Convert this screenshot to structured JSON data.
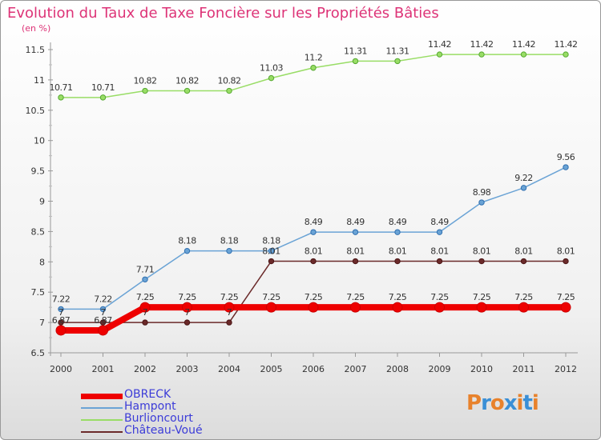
{
  "title": "Evolution du Taux de Taxe Foncière sur les Propriétés Bâties",
  "subtitle": "(en %)",
  "logo": {
    "letters": [
      "P",
      "r",
      "o",
      "x",
      "i",
      "t",
      "i"
    ],
    "colors": [
      "#e8822c",
      "#3a8fd6",
      "#e8822c",
      "#3a8fd6",
      "#e8822c",
      "#3a8fd6",
      "#e8822c"
    ],
    "text": "Proxiti"
  },
  "chart_data": {
    "type": "line",
    "title": "Evolution du Taux de Taxe Foncière sur les Propriétés Bâties",
    "ylabel": "(en %)",
    "xlabel": "",
    "x": [
      "2000",
      "2001",
      "2002",
      "2003",
      "2004",
      "2005",
      "2006",
      "2007",
      "2008",
      "2009",
      "2010",
      "2011",
      "2012"
    ],
    "ylim": [
      6.5,
      11.5
    ],
    "yticks": [
      "6.5",
      "7",
      "7.5",
      "8",
      "8.5",
      "9",
      "9.5",
      "10",
      "10.5",
      "11",
      "11.5"
    ],
    "grid": false,
    "legend_position": "bottom-left",
    "series": [
      {
        "name": "OBRECK",
        "color": "#ee0000",
        "style": "thick",
        "values": [
          6.87,
          6.87,
          7.25,
          7.25,
          7.25,
          7.25,
          7.25,
          7.25,
          7.25,
          7.25,
          7.25,
          7.25,
          7.25
        ],
        "labels": [
          "6.87",
          "6.87",
          "7.25",
          "7.25",
          "7.25",
          "7.25",
          "7.25",
          "7.25",
          "7.25",
          "7.25",
          "7.25",
          "7.25",
          "7.25"
        ]
      },
      {
        "name": "Hampont",
        "color": "#6aa3d5",
        "style": "thin",
        "values": [
          7.22,
          7.22,
          7.71,
          8.18,
          8.18,
          8.18,
          8.49,
          8.49,
          8.49,
          8.49,
          8.98,
          9.22,
          9.56
        ],
        "labels": [
          "7.22",
          "7.22",
          "7.71",
          "8.18",
          "8.18",
          "8.18",
          "8.49",
          "8.49",
          "8.49",
          "8.49",
          "8.98",
          "9.22",
          "9.56"
        ]
      },
      {
        "name": "Burlioncourt",
        "color": "#99dd66",
        "style": "thin",
        "values": [
          10.71,
          10.71,
          10.82,
          10.82,
          10.82,
          11.03,
          11.2,
          11.31,
          11.31,
          11.42,
          11.42,
          11.42,
          11.42
        ],
        "labels": [
          "10.71",
          "10.71",
          "10.82",
          "10.82",
          "10.82",
          "11.03",
          "11.2",
          "11.31",
          "11.31",
          "11.42",
          "11.42",
          "11.42",
          "11.42"
        ]
      },
      {
        "name": "Château-Voué",
        "color": "#6b2a2a",
        "style": "thin",
        "values": [
          7,
          7,
          7,
          7,
          7,
          8.01,
          8.01,
          8.01,
          8.01,
          8.01,
          8.01,
          8.01,
          8.01
        ],
        "labels": [
          "7",
          "7",
          "7",
          "7",
          "7",
          "8.01",
          "8.01",
          "8.01",
          "8.01",
          "8.01",
          "8.01",
          "8.01",
          "8.01"
        ]
      }
    ]
  }
}
